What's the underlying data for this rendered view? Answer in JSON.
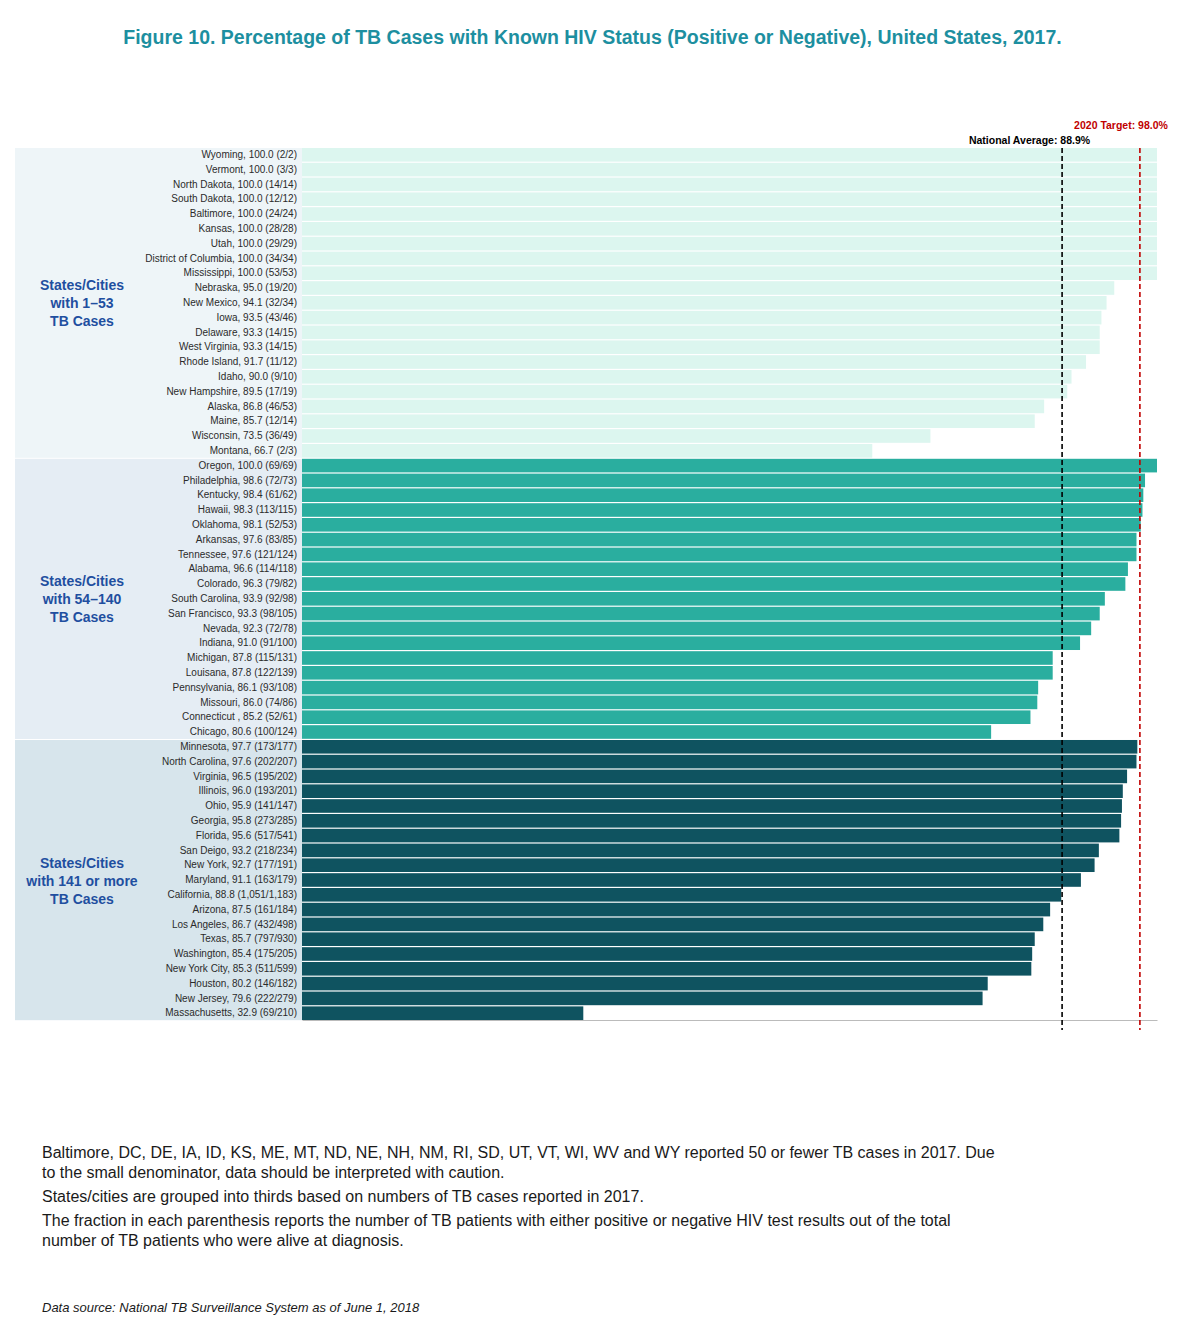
{
  "chart_data": {
    "type": "bar",
    "orientation": "horizontal",
    "title": "Figure 10.  Percentage of TB Cases with Known HIV Status (Positive or Negative), United States, 2017.",
    "xlim": [
      0,
      100
    ],
    "xticks": [],
    "tick_labels": "y",
    "grid": false,
    "series": [
      {
        "name": "States/Cities with 1–53 TB Cases",
        "color": "#dcf6ef",
        "categories": [
          "Wyoming, 100.0 (2/2)",
          "Vermont, 100.0 (3/3)",
          "North Dakota, 100.0 (14/14)",
          "South Dakota, 100.0 (12/12)",
          "Baltimore, 100.0 (24/24)",
          "Kansas, 100.0 (28/28)",
          "Utah, 100.0 (29/29)",
          "District of Columbia, 100.0 (34/34)",
          "Mississippi, 100.0 (53/53)",
          "Nebraska, 95.0 (19/20)",
          "New Mexico, 94.1 (32/34)",
          "Iowa, 93.5 (43/46)",
          "Delaware, 93.3 (14/15)",
          "West Virginia, 93.3 (14/15)",
          "Rhode Island, 91.7 (11/12)",
          "Idaho, 90.0 (9/10)",
          "New Hampshire, 89.5 (17/19)",
          "Alaska, 86.8 (46/53)",
          "Maine, 85.7 (12/14)",
          "Wisconsin, 73.5 (36/49)",
          "Montana, 66.7 (2/3)"
        ],
        "values": [
          100.0,
          100.0,
          100.0,
          100.0,
          100.0,
          100.0,
          100.0,
          100.0,
          100.0,
          95.0,
          94.1,
          93.5,
          93.3,
          93.3,
          91.7,
          90.0,
          89.5,
          86.8,
          85.7,
          73.5,
          66.7
        ]
      },
      {
        "name": "States/Cities with 54–140 TB Cases",
        "color": "#2aae9f",
        "categories": [
          "Oregon, 100.0  (69/69)",
          "Philadelphia, 98.6 (72/73)",
          "Kentucky, 98.4 (61/62)",
          "Hawaii, 98.3 (113/115)",
          "Oklahoma, 98.1 (52/53)",
          "Arkansas, 97.6 (83/85)",
          "Tennessee, 97.6 (121/124)",
          "Alabama, 96.6 (114/118)",
          "Colorado, 96.3 (79/82)",
          "South Carolina, 93.9 (92/98)",
          "San Francisco, 93.3 (98/105)",
          "Nevada, 92.3 (72/78)",
          "Indiana, 91.0 (91/100)",
          "Michigan, 87.8 (115/131)",
          "Louisana, 87.8 (122/139)",
          "Pennsylvania, 86.1 (93/108)",
          "Missouri, 86.0 (74/86)",
          "Connecticut , 85.2 (52/61)",
          "Chicago, 80.6 (100/124)"
        ],
        "values": [
          100.0,
          98.6,
          98.4,
          98.3,
          98.1,
          97.6,
          97.6,
          96.6,
          96.3,
          93.9,
          93.3,
          92.3,
          91.0,
          87.8,
          87.8,
          86.1,
          86.0,
          85.2,
          80.6
        ]
      },
      {
        "name": "States/Cities with 141 or more TB Cases",
        "color": "#0f5360",
        "categories": [
          "Minnesota, 97.7 (173/177)",
          "North Carolina, 97.6 (202/207)",
          "Virginia, 96.5 (195/202)",
          "Illinois, 96.0 (193/201)",
          "Ohio, 95.9 (141/147)",
          "Georgia, 95.8 (273/285)",
          "Florida, 95.6 (517/541)",
          "San Deigo, 93.2 (218/234)",
          "New York, 92.7 (177/191)",
          "Maryland, 91.1 (163/179)",
          "California, 88.8 (1,051/1,183)",
          "Arizona, 87.5 (161/184)",
          "Los Angeles, 86.7 (432/498)",
          "Texas, 85.7 (797/930)",
          "Washington, 85.4 (175/205)",
          "New York City, 85.3 (511/599)",
          "Houston, 80.2 (146/182)",
          "New Jersey, 79.6 (222/279)",
          "Massachusetts, 32.9 (69/210)"
        ],
        "values": [
          97.7,
          97.6,
          96.5,
          96.0,
          95.9,
          95.8,
          95.6,
          93.2,
          92.7,
          91.1,
          88.8,
          87.5,
          86.7,
          85.7,
          85.4,
          85.3,
          80.2,
          79.6,
          32.9
        ]
      }
    ],
    "annotations": [
      {
        "label": "National Average: 88.9%",
        "value": 88.9,
        "color": "#000000",
        "line_style": "dashed"
      },
      {
        "label": "2020 Target: 98.0%",
        "value": 98.0,
        "color": "#c00000",
        "line_style": "dashed"
      }
    ],
    "notes": [
      "Baltimore, DC, DE, IA, ID, KS, ME, MT, ND, NE, NH, NM, RI, SD, UT, VT, WI, WV and WY reported 50 or fewer TB cases in 2017. Due to the small denominator, data should be interpreted with caution.",
      "States/cities are grouped into thirds based on numbers of TB cases reported in 2017.",
      "The fraction in each parenthesis reports the number of TB patients with either positive or negative HIV test results out of the total number of TB patients who were alive at diagnosis."
    ],
    "source": "Data source: National TB Surveillance System as of June 1, 2018"
  }
}
